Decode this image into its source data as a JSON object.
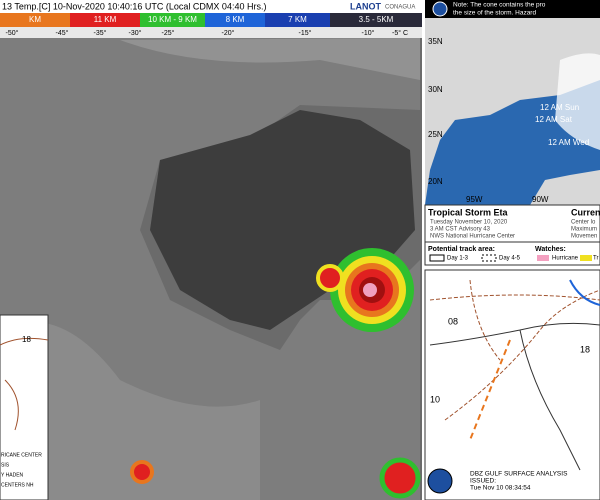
{
  "satellite": {
    "title": "13 Temp.[C] 10-Nov-2020 10:40:16 UTC (Local CDMX  04:40 Hrs.)",
    "logos": [
      "LANOT",
      "CONAGUA"
    ],
    "scale": [
      {
        "label": "KM",
        "color": "#e8761e"
      },
      {
        "label": "11 KM",
        "color": "#e02020"
      },
      {
        "label": "10 KM - 9 KM",
        "color": "#2fbf2f"
      },
      {
        "label": "8 KM",
        "color": "#1e64d8"
      },
      {
        "label": "7 KM",
        "color": "#1a3fb0"
      },
      {
        "label": "3.5 - 5KM",
        "color": "#2a2a3a"
      }
    ],
    "temps": [
      "-50°",
      "-45°",
      "-35°",
      "-30°",
      "-25°",
      "-20°",
      "-15°",
      "-10°",
      "-5° C"
    ]
  },
  "cone": {
    "note": [
      "Note: The cone contains the pro",
      "the size of the storm. Hazard"
    ],
    "lats": [
      "35N",
      "30N",
      "25N",
      "20N"
    ],
    "lons": [
      "95W",
      "90W"
    ],
    "times": [
      "12 AM Sun",
      "12 AM Sat",
      "12 AM Wed"
    ],
    "storm": "Tropical Storm Eta",
    "date": "Tuesday November 10, 2020",
    "advisory": "3 AM CST Advisory 43",
    "center": "NWS National Hurricane Center",
    "current": [
      "Curren",
      "Center lo",
      "Maximum",
      "Movemen"
    ],
    "track_title": "Potential track area:",
    "day13": "Day 1-3",
    "day45": "Day 4-5",
    "watches": "Watches:",
    "hurricane": "Hurricane",
    "ts": "Tr"
  },
  "surface": {
    "labels": [
      "08",
      "10",
      "18"
    ],
    "footer": [
      "DBZ GULF SURFACE ANALYSIS",
      "ISSUED:",
      "Tue Nov 10 08:34:54"
    ]
  },
  "inset": {
    "label": "18",
    "footer": [
      "RICANE CENTER",
      "SIS",
      "Y HADEN",
      "CENTERS NH"
    ]
  }
}
